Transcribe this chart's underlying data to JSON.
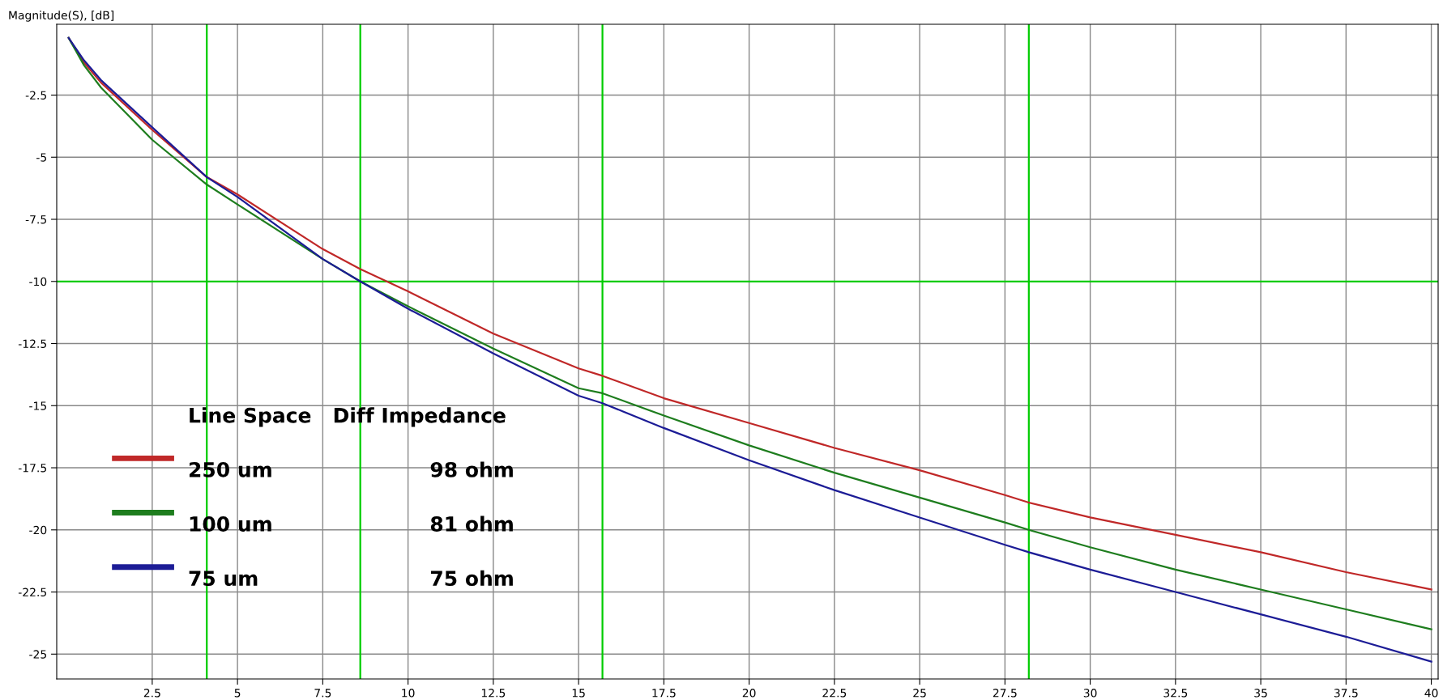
{
  "chart_data": {
    "type": "line",
    "ylabel": "Magnitude(S), [dB]",
    "legend_title": "Line Space   Diff Impedance",
    "x": [
      0.05,
      0.5,
      1,
      2.5,
      4.1,
      5,
      7.5,
      8.6,
      10,
      12.5,
      15,
      15.7,
      17.5,
      20,
      22.5,
      25,
      27.5,
      28.2,
      30,
      32.5,
      35,
      37.5,
      40
    ],
    "series": [
      {
        "name": "250 um",
        "color": "#c02828",
        "values": [
          -0.2,
          -1.2,
          -2.0,
          -3.9,
          -5.8,
          -6.5,
          -8.7,
          -9.5,
          -10.4,
          -12.1,
          -13.5,
          -13.8,
          -14.7,
          -15.7,
          -16.7,
          -17.6,
          -18.6,
          -18.9,
          -19.5,
          -20.2,
          -20.9,
          -21.7,
          -22.4
        ]
      },
      {
        "name": "100 um",
        "color": "#1e7d1e",
        "values": [
          -0.2,
          -1.3,
          -2.2,
          -4.3,
          -6.1,
          -6.9,
          -9.1,
          -10.0,
          -11.0,
          -12.7,
          -14.3,
          -14.5,
          -15.4,
          -16.6,
          -17.7,
          -18.7,
          -19.7,
          -20.0,
          -20.7,
          -21.6,
          -22.4,
          -23.2,
          -24.0
        ]
      },
      {
        "name": "75 um",
        "color": "#1c1c96",
        "values": [
          -0.2,
          -1.1,
          -1.9,
          -3.8,
          -5.8,
          -6.6,
          -9.1,
          -10.0,
          -11.1,
          -12.9,
          -14.6,
          -14.9,
          -15.9,
          -17.2,
          -18.4,
          -19.5,
          -20.6,
          -20.9,
          -21.6,
          -22.5,
          -23.4,
          -24.3,
          -25.3
        ]
      }
    ],
    "annotations": [
      "98 ohm",
      "81 ohm",
      "75 ohm"
    ],
    "ref_lines": [
      {
        "axis": "x",
        "value": 4.1,
        "color": "#00cc00"
      },
      {
        "axis": "x",
        "value": 8.6,
        "color": "#00cc00"
      },
      {
        "axis": "x",
        "value": 15.7,
        "color": "#00cc00"
      },
      {
        "axis": "x",
        "value": 28.2,
        "color": "#00cc00"
      },
      {
        "axis": "y",
        "value": -10,
        "color": "#00cc00"
      }
    ],
    "xlim": [
      -0.3,
      40.2
    ],
    "ylim": [
      -26,
      0.35
    ],
    "xticks": [
      2.5,
      5,
      7.5,
      10,
      12.5,
      15,
      17.5,
      20,
      22.5,
      25,
      27.5,
      30,
      32.5,
      35,
      37.5,
      40
    ],
    "yticks": [
      -2.5,
      -5,
      -7.5,
      -10,
      -12.5,
      -15,
      -17.5,
      -20,
      -22.5,
      -25
    ],
    "grid": true,
    "legend": "bottom left",
    "marker": "none",
    "line_style": "solid"
  }
}
